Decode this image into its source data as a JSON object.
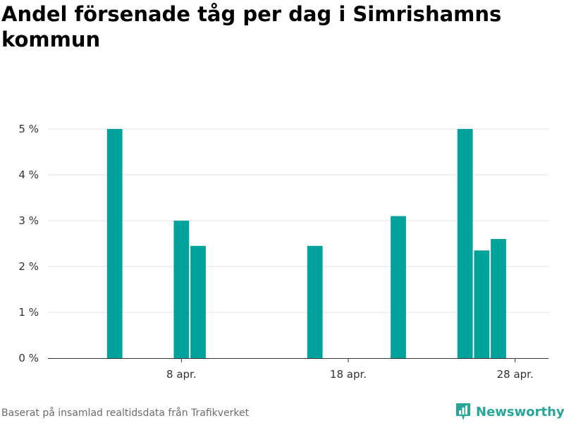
{
  "page": {
    "title": "Andel försenade tåg per dag i Simrishamns kommun",
    "source": "Baserat på insamlad realtidsdata från Trafikverket",
    "brand": "Newsworthy",
    "brand_color": "#26a69a",
    "bar_color": "#00a39b",
    "grid_color": "#e0e0e0"
  },
  "chart_data": {
    "type": "bar",
    "title": "Andel försenade tåg per dag i Simrishamns kommun",
    "xlabel": "",
    "ylabel": "",
    "ylim": [
      0,
      5
    ],
    "yticks": [
      0,
      1,
      2,
      3,
      4,
      5
    ],
    "ytick_labels": [
      "0 %",
      "1 %",
      "2 %",
      "3 %",
      "4 %",
      "5 %"
    ],
    "xticks": [
      "2024-04-08",
      "2024-04-18",
      "2024-04-28"
    ],
    "xtick_labels": [
      "8 apr.",
      "18 apr.",
      "28 apr."
    ],
    "x_range": [
      "2024-03-31",
      "2024-04-30"
    ],
    "grid": true,
    "series": [
      {
        "dates": [
          "2024-04-04",
          "2024-04-08",
          "2024-04-09",
          "2024-04-16",
          "2024-04-21",
          "2024-04-25",
          "2024-04-26",
          "2024-04-27"
        ],
        "values": [
          5.0,
          3.0,
          2.45,
          2.45,
          3.1,
          5.0,
          2.35,
          2.6
        ]
      }
    ]
  }
}
